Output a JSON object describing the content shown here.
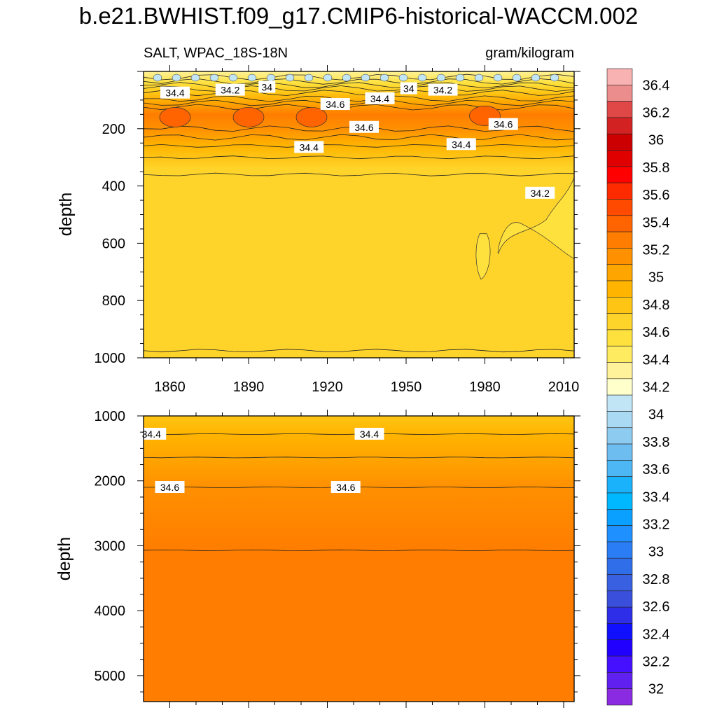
{
  "figure_title": "b.e21.BWHIST.f09_g17.CMIP6-historical-WACCM.002",
  "chart_data": [
    {
      "type": "heatmap",
      "panel": "upper",
      "variable_label": "SALT, WPAC_18S-18N",
      "units_label": "gram/kilogram",
      "ylabel": "depth",
      "xlabel": "",
      "x_range": [
        1850,
        2014
      ],
      "x_ticks": [
        1860,
        1890,
        1920,
        1950,
        1980,
        2010
      ],
      "y_range": [
        0,
        1000
      ],
      "y_ticks": [
        200,
        400,
        600,
        800,
        1000
      ],
      "y_reversed": true,
      "grid": false,
      "profile": [
        {
          "depth": 0,
          "value": 33.9
        },
        {
          "depth": 40,
          "value": 34.1
        },
        {
          "depth": 75,
          "value": 34.35
        },
        {
          "depth": 110,
          "value": 34.55
        },
        {
          "depth": 150,
          "value": 34.78
        },
        {
          "depth": 200,
          "value": 34.62
        },
        {
          "depth": 260,
          "value": 34.45
        },
        {
          "depth": 340,
          "value": 34.28
        },
        {
          "depth": 400,
          "value": 34.2
        },
        {
          "depth": 600,
          "value": 34.2
        },
        {
          "depth": 980,
          "value": 34.22
        }
      ],
      "anomaly_region": {
        "value": 34.15,
        "years": [
          1978,
          2014
        ],
        "depths": [
          420,
          630
        ]
      },
      "contour_labels": [
        {
          "text": "34.4",
          "year": 1862,
          "depth": 75
        },
        {
          "text": "34.2",
          "year": 1883,
          "depth": 65
        },
        {
          "text": "34",
          "year": 1897,
          "depth": 55
        },
        {
          "text": "34",
          "year": 1951,
          "depth": 60
        },
        {
          "text": "34.2",
          "year": 1964,
          "depth": 65
        },
        {
          "text": "34.4",
          "year": 1940,
          "depth": 95
        },
        {
          "text": "34.6",
          "year": 1923,
          "depth": 115
        },
        {
          "text": "34.6",
          "year": 1934,
          "depth": 195
        },
        {
          "text": "34.6",
          "year": 1987,
          "depth": 185
        },
        {
          "text": "34.4",
          "year": 1913,
          "depth": 265
        },
        {
          "text": "34.4",
          "year": 1971,
          "depth": 255
        },
        {
          "text": "34.2",
          "year": 2001,
          "depth": 425
        }
      ]
    },
    {
      "type": "heatmap",
      "panel": "lower",
      "ylabel": "depth",
      "xlabel": "",
      "x_range": [
        1850,
        2014
      ],
      "y_range": [
        1000,
        5400
      ],
      "y_ticks": [
        1000,
        2000,
        3000,
        4000,
        5000
      ],
      "y_reversed": true,
      "grid": false,
      "profile": [
        {
          "depth": 1000,
          "value": 34.3
        },
        {
          "depth": 1280,
          "value": 34.4
        },
        {
          "depth": 1640,
          "value": 34.5
        },
        {
          "depth": 2100,
          "value": 34.6
        },
        {
          "depth": 3070,
          "value": 34.7
        },
        {
          "depth": 5400,
          "value": 34.72
        }
      ],
      "contour_labels": [
        {
          "text": "34.4",
          "year": 1853,
          "depth": 1280
        },
        {
          "text": "34.4",
          "year": 1936,
          "depth": 1280
        },
        {
          "text": "34.6",
          "year": 1860,
          "depth": 2100
        },
        {
          "text": "34.6",
          "year": 1927,
          "depth": 2100
        }
      ]
    }
  ],
  "colorbar": {
    "labels": [
      "36.4",
      "36.2",
      "36",
      "35.8",
      "35.6",
      "35.4",
      "35.2",
      "35",
      "34.8",
      "34.6",
      "34.4",
      "34.2",
      "34",
      "33.8",
      "33.6",
      "33.4",
      "33.2",
      "33",
      "32.8",
      "32.6",
      "32.4",
      "32.2",
      "32"
    ],
    "colors": [
      "#f9b2b2",
      "#ec8d8d",
      "#e04747",
      "#d22222",
      "#cc0000",
      "#e00000",
      "#ff0000",
      "#ff2b00",
      "#ff4a00",
      "#ff6400",
      "#ff7d00",
      "#ff9000",
      "#ffa500",
      "#ffb400",
      "#ffc514",
      "#ffd42a",
      "#ffe13e",
      "#ffeb60",
      "#fff29a",
      "#ffffcc",
      "#c2e5f5",
      "#a9d9f3",
      "#8ecbf1",
      "#6ebdf0",
      "#4db7f5",
      "#1ab2fb",
      "#00b8ff",
      "#0aa0ff",
      "#1e90ff",
      "#2a7df5",
      "#2f6ee8",
      "#3860e0",
      "#3a4fdc",
      "#2e2ee8",
      "#1010ff",
      "#2200ff",
      "#4410ff",
      "#6020f0",
      "#8a2be2"
    ]
  }
}
